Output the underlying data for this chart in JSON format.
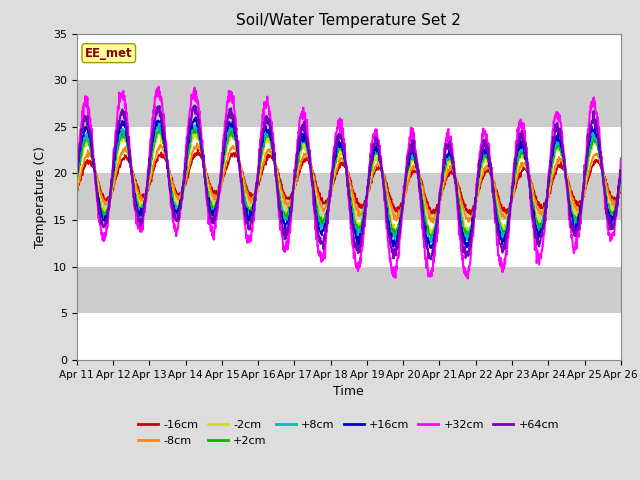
{
  "title": "Soil/Water Temperature Set 2",
  "xlabel": "Time",
  "ylabel": "Temperature (C)",
  "ylim": [
    0,
    35
  ],
  "yticks": [
    0,
    5,
    10,
    15,
    20,
    25,
    30,
    35
  ],
  "x_tick_labels": [
    "Apr 11",
    "Apr 12",
    "Apr 13",
    "Apr 14",
    "Apr 15",
    "Apr 16",
    "Apr 17",
    "Apr 18",
    "Apr 19",
    "Apr 20",
    "Apr 21",
    "Apr 22",
    "Apr 23",
    "Apr 24",
    "Apr 25",
    "Apr 26"
  ],
  "annotation_text": "EE_met",
  "annotation_color": "#8b0000",
  "annotation_bg": "#ffff99",
  "annotation_edge": "#999900",
  "series": [
    {
      "label": "-16cm",
      "color": "#cc0000",
      "lw": 1.2
    },
    {
      "label": "-8cm",
      "color": "#ff8800",
      "lw": 1.2
    },
    {
      "label": "-2cm",
      "color": "#dddd00",
      "lw": 1.2
    },
    {
      "label": "+2cm",
      "color": "#00bb00",
      "lw": 1.2
    },
    {
      "label": "+8cm",
      "color": "#00bbbb",
      "lw": 1.2
    },
    {
      "label": "+16cm",
      "color": "#0000cc",
      "lw": 1.2
    },
    {
      "label": "+32cm",
      "color": "#ff00ff",
      "lw": 1.5
    },
    {
      "label": "+64cm",
      "color": "#7700bb",
      "lw": 1.5
    }
  ],
  "fig_bg": "#dddddd",
  "plot_bg": "#ffffff",
  "band_color": "#cccccc",
  "grid_color": "#aaaaaa",
  "days": 15,
  "n_points": 1500
}
